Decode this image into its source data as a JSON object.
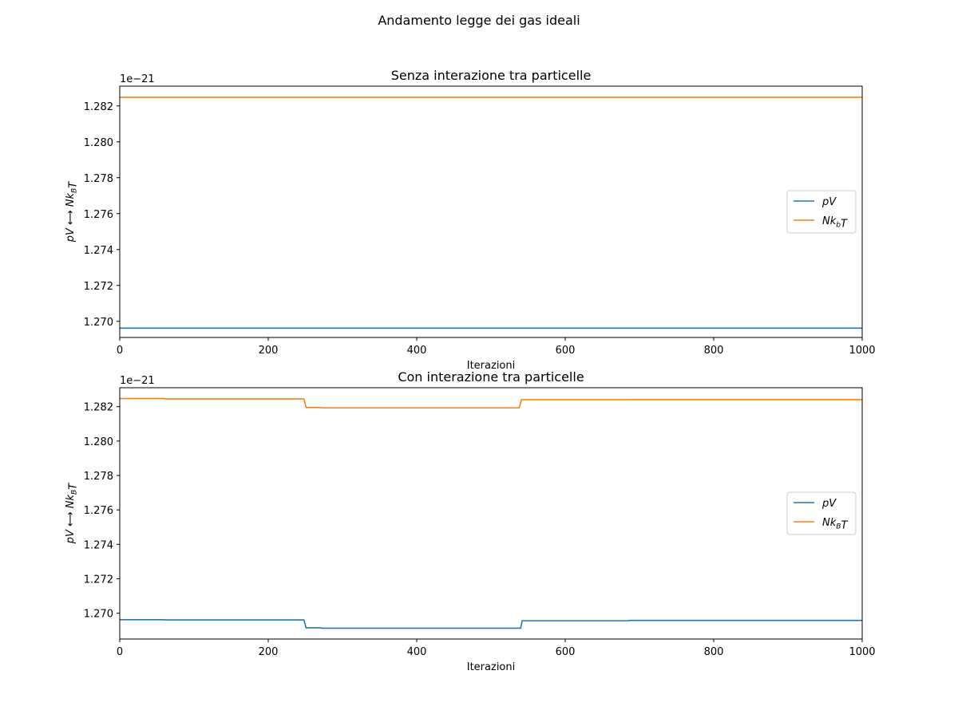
{
  "figure_title": "Andamento legge dei gas ideali",
  "colors": {
    "pv": "#1f77b4",
    "nkt": "#ff7f0e"
  },
  "chart_data": [
    {
      "type": "line",
      "title": "Senza interazione tra particelle",
      "xlabel": "Iterazioni",
      "ylabel": "pV ⟷ Nk_BT",
      "offset_text": "1e−21",
      "xlim": [
        0,
        1000
      ],
      "ylim": [
        1.2691,
        1.2831
      ],
      "xticks": [
        0,
        200,
        400,
        600,
        800,
        1000
      ],
      "yticks": [
        1.27,
        1.272,
        1.274,
        1.276,
        1.278,
        1.28,
        1.282
      ],
      "ytick_labels": [
        "1.270",
        "1.272",
        "1.274",
        "1.276",
        "1.278",
        "1.280",
        "1.282"
      ],
      "legend": "center-right",
      "series": [
        {
          "name": "pV",
          "color": "#1f77b4",
          "points": [
            [
              0,
              1.26962
            ],
            [
              1000,
              1.26962
            ]
          ]
        },
        {
          "name": "Nk_bT",
          "color": "#ff7f0e",
          "points": [
            [
              0,
              1.28248
            ],
            [
              1000,
              1.28248
            ]
          ]
        }
      ]
    },
    {
      "type": "line",
      "title": "Con interazione tra particelle",
      "xlabel": "Iterazioni",
      "ylabel": "pV ⟷ Nk_BT",
      "offset_text": "1e−21",
      "xlim": [
        0,
        1000
      ],
      "ylim": [
        1.2685,
        1.2831
      ],
      "xticks": [
        0,
        200,
        400,
        600,
        800,
        1000
      ],
      "yticks": [
        1.27,
        1.272,
        1.274,
        1.276,
        1.278,
        1.28,
        1.282
      ],
      "ytick_labels": [
        "1.270",
        "1.272",
        "1.274",
        "1.276",
        "1.278",
        "1.280",
        "1.282"
      ],
      "legend": "center-right",
      "series": [
        {
          "name": "pV",
          "color": "#1f77b4",
          "points": [
            [
              0,
              1.26962
            ],
            [
              60,
              1.26962
            ],
            [
              61,
              1.26961
            ],
            [
              248,
              1.26961
            ],
            [
              251,
              1.26915
            ],
            [
              270,
              1.26915
            ],
            [
              272,
              1.26913
            ],
            [
              540,
              1.26913
            ],
            [
              542,
              1.26956
            ],
            [
              685,
              1.26956
            ],
            [
              686,
              1.26958
            ],
            [
              1000,
              1.26958
            ]
          ]
        },
        {
          "name": "Nk_BT",
          "color": "#ff7f0e",
          "points": [
            [
              0,
              1.28247
            ],
            [
              60,
              1.28247
            ],
            [
              61,
              1.28245
            ],
            [
              248,
              1.28245
            ],
            [
              251,
              1.28195
            ],
            [
              270,
              1.28195
            ],
            [
              272,
              1.28193
            ],
            [
              538,
              1.28193
            ],
            [
              541,
              1.2824
            ],
            [
              685,
              1.2824
            ],
            [
              686,
              1.28241
            ],
            [
              1000,
              1.28241
            ]
          ]
        }
      ]
    }
  ]
}
